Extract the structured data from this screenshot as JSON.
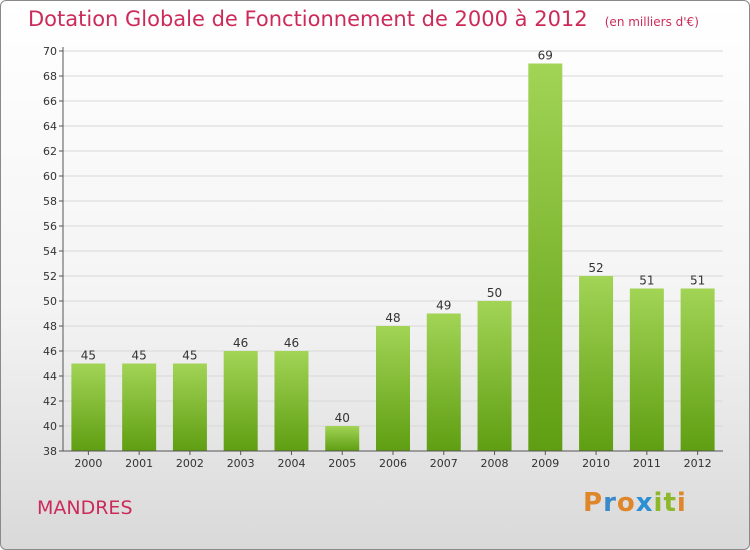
{
  "title": "Dotation Globale de Fonctionnement de 2000 à 2012",
  "unit": "(en milliers d'€)",
  "commune": "MANDRES",
  "logo": {
    "text": "Proxiti",
    "colors": [
      "#e0862a",
      "#3a89c9",
      "#e0862a",
      "#2c8fd6",
      "#8cb82a",
      "#8cb82a",
      "#e0862a"
    ]
  },
  "colors": {
    "title": "#cc2b5a",
    "bar_light": "#a2d456",
    "bar_dark": "#5f9e12",
    "grid": "#d8d8d8",
    "axis": "#555555"
  },
  "chart_data": {
    "type": "bar",
    "categories": [
      "2000",
      "2001",
      "2002",
      "2003",
      "2004",
      "2005",
      "2006",
      "2007",
      "2008",
      "2009",
      "2010",
      "2011",
      "2012"
    ],
    "values": [
      45,
      45,
      45,
      46,
      46,
      40,
      48,
      49,
      50,
      69,
      52,
      51,
      51
    ],
    "ylim": [
      38,
      70
    ],
    "yticks": [
      38,
      40,
      42,
      44,
      46,
      48,
      50,
      52,
      54,
      56,
      58,
      60,
      62,
      64,
      66,
      68,
      70
    ],
    "grid": true,
    "data_labels": true
  }
}
